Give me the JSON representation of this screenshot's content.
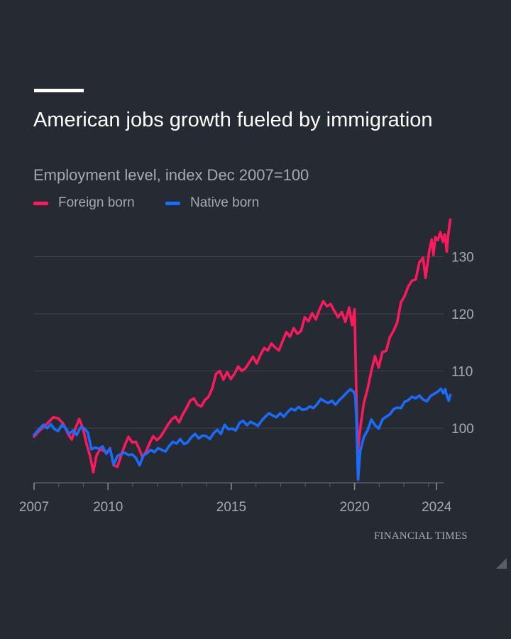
{
  "title": "American jobs growth fueled by immigration",
  "subtitle": "Employment level, index Dec 2007=100",
  "source": "FINANCIAL TIMES",
  "colors": {
    "background": "#262a33",
    "foreign": "#ff1a5e",
    "native": "#1a6cff",
    "grid": "#3d424c",
    "text": "#a6a9b0"
  },
  "chart_data": {
    "type": "line",
    "title": "American jobs growth fueled by immigration",
    "subtitle": "Employment level, index Dec 2007=100",
    "xlabel": "",
    "ylabel": "",
    "xlim": [
      2007.92,
      2024.3
    ],
    "ylim": [
      90.5,
      136.5
    ],
    "y_ticks": [
      100,
      110,
      120,
      130
    ],
    "x_ticks": [
      {
        "label": "2007",
        "value": 2007.92
      },
      {
        "label": "2010",
        "value": 2010.92
      },
      {
        "label": "2015",
        "value": 2015.92
      },
      {
        "label": "2020",
        "value": 2020.92
      },
      {
        "label": "2024",
        "value": 2024.25
      }
    ],
    "grid": true,
    "legend_position": "top-left",
    "series": [
      {
        "name": "Foreign born",
        "color": "#ff1a5e",
        "points": [
          [
            2007.92,
            98.5
          ],
          [
            2008.1,
            99.4
          ],
          [
            2008.3,
            100.2
          ],
          [
            2008.5,
            101.0
          ],
          [
            2008.7,
            101.9
          ],
          [
            2008.9,
            101.7
          ],
          [
            2009.1,
            100.8
          ],
          [
            2009.3,
            99.0
          ],
          [
            2009.45,
            98.0
          ],
          [
            2009.6,
            100.0
          ],
          [
            2009.75,
            101.6
          ],
          [
            2009.9,
            100.0
          ],
          [
            2010.05,
            97.2
          ],
          [
            2010.2,
            95.0
          ],
          [
            2010.32,
            92.3
          ],
          [
            2010.45,
            95.2
          ],
          [
            2010.6,
            96.3
          ],
          [
            2010.75,
            96.0
          ],
          [
            2010.9,
            95.8
          ],
          [
            2011.0,
            96.5
          ],
          [
            2011.15,
            93.5
          ],
          [
            2011.3,
            93.2
          ],
          [
            2011.45,
            95.2
          ],
          [
            2011.6,
            97.0
          ],
          [
            2011.75,
            98.5
          ],
          [
            2011.9,
            97.5
          ],
          [
            2012.05,
            97.6
          ],
          [
            2012.2,
            96.2
          ],
          [
            2012.32,
            94.9
          ],
          [
            2012.45,
            95.8
          ],
          [
            2012.6,
            97.3
          ],
          [
            2012.75,
            98.6
          ],
          [
            2012.9,
            97.9
          ],
          [
            2013.05,
            98.5
          ],
          [
            2013.2,
            99.5
          ],
          [
            2013.35,
            100.6
          ],
          [
            2013.5,
            101.5
          ],
          [
            2013.65,
            102.0
          ],
          [
            2013.8,
            101.0
          ],
          [
            2013.95,
            102.4
          ],
          [
            2014.1,
            103.5
          ],
          [
            2014.25,
            104.8
          ],
          [
            2014.4,
            105.2
          ],
          [
            2014.55,
            104.1
          ],
          [
            2014.7,
            103.8
          ],
          [
            2014.85,
            104.9
          ],
          [
            2015.0,
            105.5
          ],
          [
            2015.15,
            107.0
          ],
          [
            2015.3,
            109.5
          ],
          [
            2015.45,
            110.0
          ],
          [
            2015.6,
            108.5
          ],
          [
            2015.75,
            109.8
          ],
          [
            2015.9,
            108.6
          ],
          [
            2016.05,
            109.5
          ],
          [
            2016.2,
            110.8
          ],
          [
            2016.35,
            110.0
          ],
          [
            2016.5,
            110.5
          ],
          [
            2016.65,
            111.5
          ],
          [
            2016.8,
            112.5
          ],
          [
            2016.95,
            111.3
          ],
          [
            2017.1,
            112.8
          ],
          [
            2017.25,
            114.0
          ],
          [
            2017.4,
            113.6
          ],
          [
            2017.55,
            114.8
          ],
          [
            2017.7,
            114.1
          ],
          [
            2017.85,
            113.6
          ],
          [
            2018.0,
            115.2
          ],
          [
            2018.15,
            116.8
          ],
          [
            2018.3,
            116.0
          ],
          [
            2018.45,
            117.5
          ],
          [
            2018.6,
            116.5
          ],
          [
            2018.75,
            117.0
          ],
          [
            2018.9,
            119.4
          ],
          [
            2019.05,
            118.7
          ],
          [
            2019.2,
            120.1
          ],
          [
            2019.35,
            119.0
          ],
          [
            2019.5,
            120.8
          ],
          [
            2019.65,
            122.2
          ],
          [
            2019.8,
            121.3
          ],
          [
            2019.95,
            121.7
          ],
          [
            2020.1,
            120.5
          ],
          [
            2020.25,
            119.4
          ],
          [
            2020.4,
            120.3
          ],
          [
            2020.55,
            118.6
          ],
          [
            2020.7,
            121.1
          ],
          [
            2020.82,
            118.0
          ],
          [
            2020.92,
            120.8
          ],
          [
            2020.98,
            108.0
          ],
          [
            2021.05,
            95.8
          ],
          [
            2021.15,
            100.0
          ],
          [
            2021.3,
            104.5
          ],
          [
            2021.45,
            106.9
          ],
          [
            2021.6,
            110.0
          ],
          [
            2021.75,
            112.6
          ],
          [
            2021.9,
            110.6
          ],
          [
            2022.05,
            113.3
          ],
          [
            2022.2,
            113.5
          ],
          [
            2022.35,
            115.9
          ],
          [
            2022.5,
            117.0
          ],
          [
            2022.65,
            118.5
          ],
          [
            2022.8,
            122.0
          ],
          [
            2022.95,
            123.1
          ],
          [
            2023.1,
            124.8
          ],
          [
            2023.25,
            125.8
          ],
          [
            2023.4,
            126.0
          ],
          [
            2023.55,
            129.0
          ],
          [
            2023.7,
            129.8
          ],
          [
            2023.8,
            126.3
          ],
          [
            2023.95,
            131.0
          ],
          [
            2024.05,
            133.0
          ],
          [
            2024.12,
            130.3
          ],
          [
            2024.2,
            133.4
          ],
          [
            2024.3,
            132.9
          ],
          [
            2024.4,
            134.3
          ],
          [
            2024.5,
            132.6
          ],
          [
            2024.58,
            133.9
          ],
          [
            2024.66,
            130.9
          ],
          [
            2024.72,
            133.9
          ],
          [
            2024.8,
            136.5
          ]
        ]
      },
      {
        "name": "Native born",
        "color": "#1a6cff",
        "points": [
          [
            2007.92,
            98.8
          ],
          [
            2008.1,
            99.7
          ],
          [
            2008.3,
            100.6
          ],
          [
            2008.45,
            100.0
          ],
          [
            2008.6,
            100.7
          ],
          [
            2008.75,
            99.8
          ],
          [
            2008.9,
            99.5
          ],
          [
            2009.05,
            100.6
          ],
          [
            2009.2,
            100.0
          ],
          [
            2009.35,
            99.0
          ],
          [
            2009.5,
            99.6
          ],
          [
            2009.65,
            98.8
          ],
          [
            2009.8,
            100.1
          ],
          [
            2009.95,
            100.0
          ],
          [
            2010.1,
            99.2
          ],
          [
            2010.25,
            96.3
          ],
          [
            2010.4,
            96.6
          ],
          [
            2010.55,
            96.4
          ],
          [
            2010.7,
            96.8
          ],
          [
            2010.85,
            95.5
          ],
          [
            2011.0,
            96.4
          ],
          [
            2011.15,
            93.6
          ],
          [
            2011.3,
            95.1
          ],
          [
            2011.45,
            95.5
          ],
          [
            2011.6,
            95.7
          ],
          [
            2011.75,
            95.3
          ],
          [
            2011.9,
            95.4
          ],
          [
            2012.05,
            94.8
          ],
          [
            2012.2,
            93.5
          ],
          [
            2012.35,
            95.2
          ],
          [
            2012.5,
            95.6
          ],
          [
            2012.65,
            96.2
          ],
          [
            2012.8,
            95.8
          ],
          [
            2012.95,
            96.5
          ],
          [
            2013.1,
            96.2
          ],
          [
            2013.25,
            95.9
          ],
          [
            2013.4,
            96.9
          ],
          [
            2013.55,
            97.6
          ],
          [
            2013.7,
            97.3
          ],
          [
            2013.85,
            98.1
          ],
          [
            2014.0,
            97.2
          ],
          [
            2014.15,
            97.5
          ],
          [
            2014.3,
            98.4
          ],
          [
            2014.45,
            99.0
          ],
          [
            2014.6,
            98.2
          ],
          [
            2014.75,
            98.7
          ],
          [
            2014.9,
            98.6
          ],
          [
            2015.05,
            98.1
          ],
          [
            2015.2,
            99.1
          ],
          [
            2015.35,
            99.7
          ],
          [
            2015.5,
            99.0
          ],
          [
            2015.65,
            100.6
          ],
          [
            2015.8,
            99.8
          ],
          [
            2015.95,
            99.9
          ],
          [
            2016.1,
            99.6
          ],
          [
            2016.25,
            100.9
          ],
          [
            2016.4,
            101.3
          ],
          [
            2016.55,
            100.5
          ],
          [
            2016.7,
            101.1
          ],
          [
            2016.85,
            100.8
          ],
          [
            2017.0,
            100.4
          ],
          [
            2017.15,
            101.3
          ],
          [
            2017.3,
            102.0
          ],
          [
            2017.45,
            102.6
          ],
          [
            2017.6,
            102.2
          ],
          [
            2017.75,
            101.9
          ],
          [
            2017.9,
            102.6
          ],
          [
            2018.05,
            102.0
          ],
          [
            2018.2,
            102.8
          ],
          [
            2018.35,
            103.4
          ],
          [
            2018.5,
            103.1
          ],
          [
            2018.65,
            103.7
          ],
          [
            2018.8,
            103.2
          ],
          [
            2018.95,
            103.3
          ],
          [
            2019.1,
            103.8
          ],
          [
            2019.25,
            103.5
          ],
          [
            2019.4,
            104.2
          ],
          [
            2019.55,
            105.1
          ],
          [
            2019.7,
            104.7
          ],
          [
            2019.85,
            104.4
          ],
          [
            2020.0,
            104.8
          ],
          [
            2020.15,
            104.1
          ],
          [
            2020.3,
            104.9
          ],
          [
            2020.45,
            105.5
          ],
          [
            2020.6,
            106.2
          ],
          [
            2020.75,
            106.8
          ],
          [
            2020.9,
            106.3
          ],
          [
            2020.95,
            105.5
          ],
          [
            2021.0,
            101.0
          ],
          [
            2021.06,
            91.0
          ],
          [
            2021.15,
            96.0
          ],
          [
            2021.3,
            98.5
          ],
          [
            2021.45,
            99.6
          ],
          [
            2021.6,
            101.5
          ],
          [
            2021.75,
            100.5
          ],
          [
            2021.9,
            99.9
          ],
          [
            2022.05,
            101.5
          ],
          [
            2022.2,
            102.0
          ],
          [
            2022.35,
            102.4
          ],
          [
            2022.5,
            103.3
          ],
          [
            2022.65,
            103.6
          ],
          [
            2022.8,
            103.5
          ],
          [
            2022.95,
            104.6
          ],
          [
            2023.1,
            104.9
          ],
          [
            2023.25,
            105.5
          ],
          [
            2023.4,
            105.2
          ],
          [
            2023.55,
            105.7
          ],
          [
            2023.7,
            105.0
          ],
          [
            2023.85,
            104.7
          ],
          [
            2024.0,
            105.6
          ],
          [
            2024.15,
            106.0
          ],
          [
            2024.3,
            106.4
          ],
          [
            2024.42,
            106.9
          ],
          [
            2024.52,
            106.1
          ],
          [
            2024.6,
            106.8
          ],
          [
            2024.68,
            105.4
          ],
          [
            2024.74,
            104.8
          ],
          [
            2024.8,
            105.8
          ]
        ]
      }
    ]
  }
}
